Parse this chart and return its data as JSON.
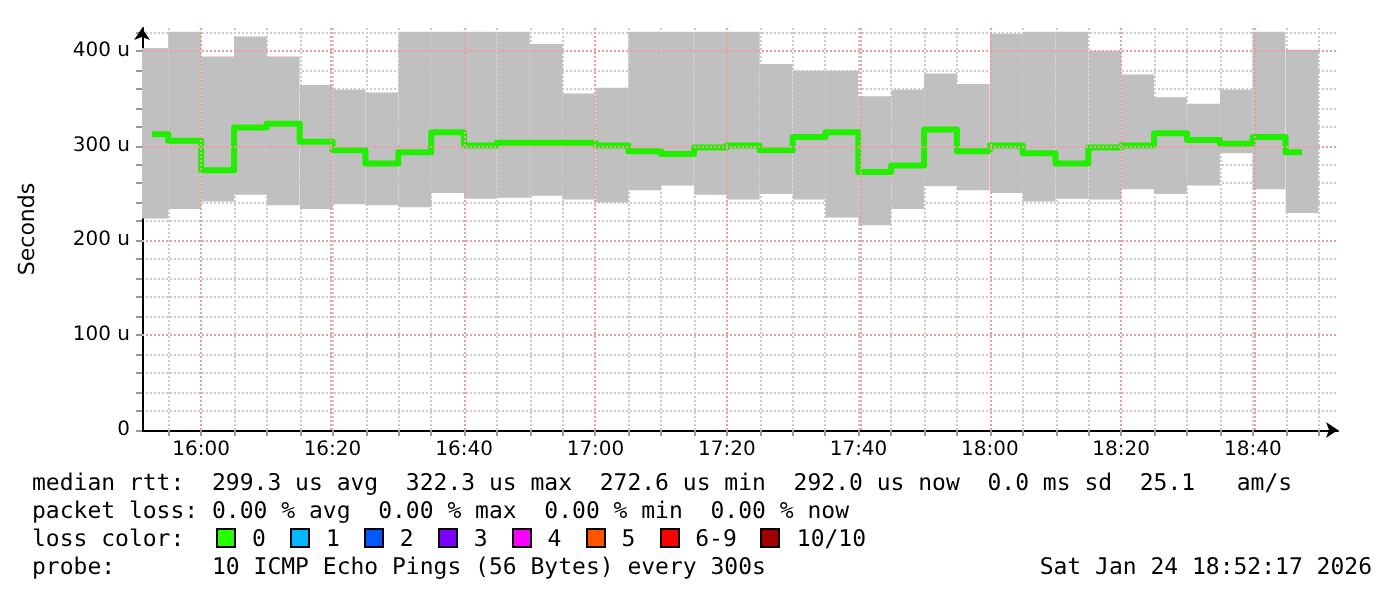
{
  "chart_data": {
    "type": "bar",
    "ylabel": "Seconds",
    "grid": true,
    "x": [
      15.875,
      15.958,
      16.042,
      16.125,
      16.208,
      16.292,
      16.375,
      16.458,
      16.542,
      16.625,
      16.708,
      16.792,
      16.875,
      16.958,
      17.042,
      17.125,
      17.208,
      17.292,
      17.375,
      17.458,
      17.542,
      17.625,
      17.708,
      17.792,
      17.875,
      17.958,
      18.042,
      18.125,
      18.208,
      18.292,
      18.375,
      18.458,
      18.542,
      18.625,
      18.708,
      18.792
    ],
    "series": [
      {
        "color": "#c0c0c0",
        "base": [
          223,
          233,
          241,
          248,
          237,
          233,
          238,
          237,
          235,
          250,
          244,
          245,
          247,
          243,
          240,
          253,
          258,
          248,
          243,
          249,
          243,
          224,
          216,
          233,
          257,
          253,
          250,
          241,
          244,
          243,
          254,
          249,
          258,
          292,
          254,
          229
        ],
        "values": [
          180,
          187,
          153,
          167,
          157,
          131,
          121,
          119,
          185,
          170,
          176,
          175,
          160,
          112,
          121,
          167,
          162,
          172,
          177,
          137,
          136,
          155,
          136,
          126,
          119,
          112,
          168,
          179,
          176,
          157,
          121,
          102,
          86,
          67,
          166,
          172
        ]
      },
      {
        "type": "step",
        "color": "#22ee00",
        "values": [
          312,
          305,
          274,
          319,
          323,
          304,
          295,
          281,
          293,
          314,
          300,
          303,
          303,
          303,
          300,
          294,
          291,
          298,
          300,
          295,
          309,
          314,
          272,
          279,
          317,
          294,
          300,
          292,
          281,
          298,
          300,
          313,
          306,
          302,
          309,
          293
        ]
      }
    ],
    "xlim": [
      15.85,
      18.883
    ],
    "xticks": [
      {
        "value": 15.917,
        "label": null
      },
      {
        "value": 16,
        "label": "16:00"
      },
      {
        "value": 16.083,
        "label": null
      },
      {
        "value": 16.167,
        "label": null
      },
      {
        "value": 16.25,
        "label": null
      },
      {
        "value": 16.333,
        "label": "16:20"
      },
      {
        "value": 16.417,
        "label": null
      },
      {
        "value": 16.5,
        "label": null
      },
      {
        "value": 16.583,
        "label": null
      },
      {
        "value": 16.667,
        "label": "16:40"
      },
      {
        "value": 16.75,
        "label": null
      },
      {
        "value": 16.833,
        "label": null
      },
      {
        "value": 16.917,
        "label": null
      },
      {
        "value": 17,
        "label": "17:00"
      },
      {
        "value": 17.083,
        "label": null
      },
      {
        "value": 17.167,
        "label": null
      },
      {
        "value": 17.25,
        "label": null
      },
      {
        "value": 17.333,
        "label": "17:20"
      },
      {
        "value": 17.417,
        "label": null
      },
      {
        "value": 17.5,
        "label": null
      },
      {
        "value": 17.583,
        "label": null
      },
      {
        "value": 17.667,
        "label": "17:40"
      },
      {
        "value": 17.75,
        "label": null
      },
      {
        "value": 17.833,
        "label": null
      },
      {
        "value": 17.917,
        "label": null
      },
      {
        "value": 18,
        "label": "18:00"
      },
      {
        "value": 18.083,
        "label": null
      },
      {
        "value": 18.167,
        "label": null
      },
      {
        "value": 18.25,
        "label": null
      },
      {
        "value": 18.333,
        "label": "18:20"
      },
      {
        "value": 18.417,
        "label": null
      },
      {
        "value": 18.5,
        "label": null
      },
      {
        "value": 18.583,
        "label": null
      },
      {
        "value": 18.667,
        "label": "18:40"
      },
      {
        "value": 18.75,
        "label": null
      },
      {
        "value": 18.833,
        "label": null
      }
    ],
    "ylim": [
      0,
      424
    ],
    "yticks": [
      {
        "value": 0,
        "label": "0"
      },
      {
        "value": 20,
        "label": null
      },
      {
        "value": 40,
        "label": null
      },
      {
        "value": 60,
        "label": null
      },
      {
        "value": 80,
        "label": null
      },
      {
        "value": 100,
        "label": "100 u"
      },
      {
        "value": 120,
        "label": null
      },
      {
        "value": 140,
        "label": null
      },
      {
        "value": 160,
        "label": null
      },
      {
        "value": 180,
        "label": null
      },
      {
        "value": 200,
        "label": "200 u"
      },
      {
        "value": 220,
        "label": null
      },
      {
        "value": 240,
        "label": null
      },
      {
        "value": 260,
        "label": null
      },
      {
        "value": 280,
        "label": null
      },
      {
        "value": 300,
        "label": "300 u"
      },
      {
        "value": 320,
        "label": null
      },
      {
        "value": 340,
        "label": null
      },
      {
        "value": 360,
        "label": null
      },
      {
        "value": 380,
        "label": null
      },
      {
        "value": 400,
        "label": "400 u"
      },
      {
        "value": 420,
        "label": null
      }
    ],
    "annotations": [
      "median rtt:  299.3 us avg  322.3 us max  272.6 us min  292.0 us now  0.0 ms sd  25.1   am/s",
      "packet loss: 0.00 % avg  0.00 % max  0.00 % min  0.00 % now",
      "loss color:",
      "0",
      "1",
      "2",
      "3",
      "4",
      "5",
      "6-9",
      "10/10",
      "probe:       10 ICMP Echo Pings (56 Bytes) every 300s",
      "Sat Jan 24 18:52:17 2026"
    ]
  }
}
